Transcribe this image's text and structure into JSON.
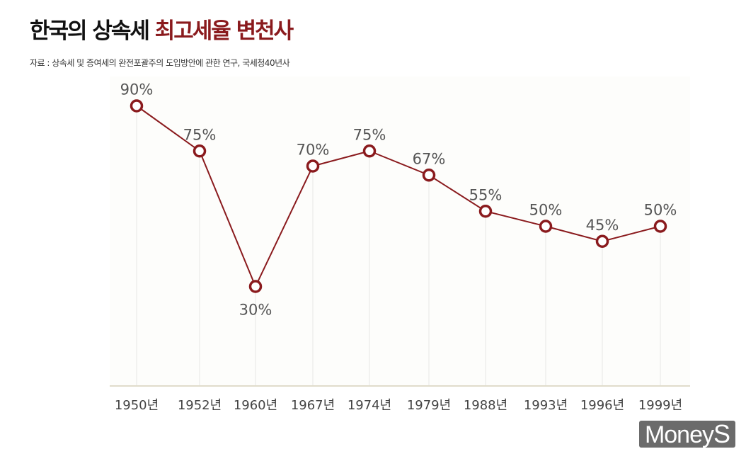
{
  "title": {
    "main": "한국의 상속세",
    "highlight": "최고세율 변천사"
  },
  "source": "자료 : 상속세 및 증여세의 완전포괄주의 도입방안에 관한 연구, 국세청40년사",
  "logo": {
    "text": "Money",
    "accent": "S"
  },
  "colors": {
    "line": "#8a1a1d",
    "label": "#555555",
    "highlight": "#8a1a1d"
  },
  "chart_data": {
    "type": "line",
    "categories": [
      "1950년",
      "1952년",
      "1960년",
      "1967년",
      "1974년",
      "1979년",
      "1988년",
      "1993년",
      "1996년",
      "1999년"
    ],
    "values": [
      90,
      75,
      30,
      70,
      75,
      67,
      55,
      50,
      45,
      50
    ],
    "data_labels": [
      "90%",
      "75%",
      "30%",
      "70%",
      "75%",
      "67%",
      "55%",
      "50%",
      "45%",
      "50%"
    ],
    "unit": "%",
    "ylim": [
      0,
      100
    ],
    "grid": "vertical drop lines",
    "legend": "none"
  }
}
